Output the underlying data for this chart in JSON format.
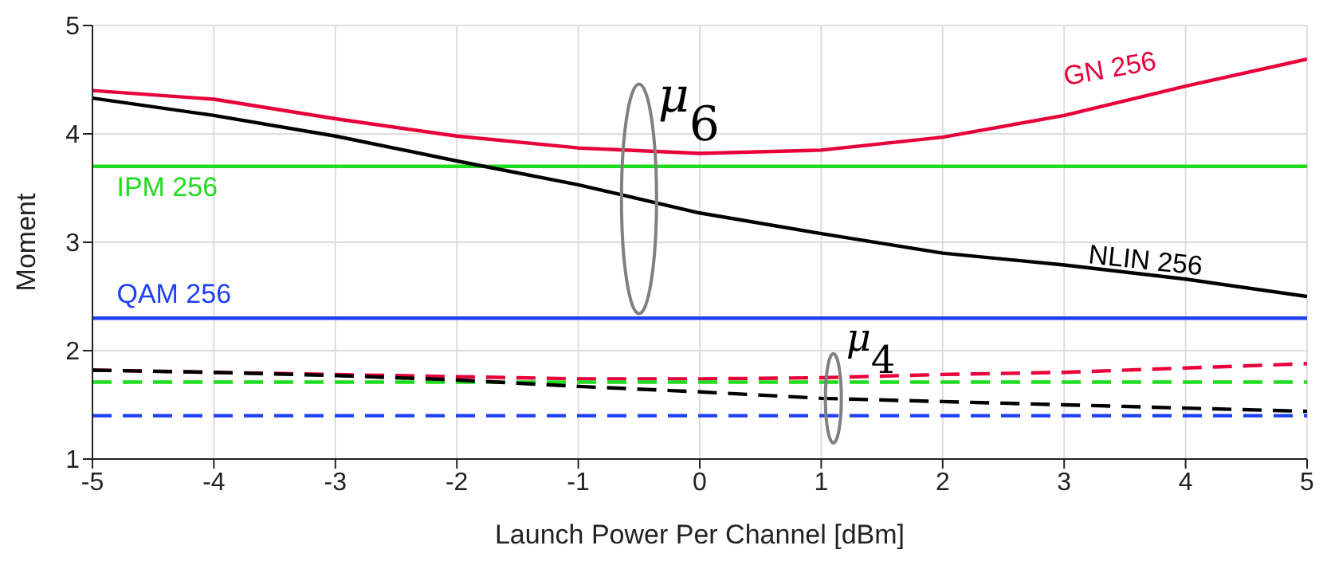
{
  "chart_data": {
    "type": "line",
    "xlabel": "Launch Power Per Channel [dBm]",
    "ylabel": "Moment",
    "x": [
      -5,
      -4,
      -3,
      -2,
      -1,
      0,
      1,
      2,
      3,
      4,
      5
    ],
    "series": [
      {
        "name": "GN 256",
        "color": "#e8003a",
        "values": [
          4.4,
          4.32,
          4.14,
          3.98,
          3.87,
          3.82,
          3.85,
          3.97,
          4.17,
          4.44,
          4.69
        ]
      },
      {
        "name": "IPM 256",
        "color": "#1edc1e",
        "values": [
          3.7,
          3.7,
          3.7,
          3.7,
          3.7,
          3.7,
          3.7,
          3.7,
          3.7,
          3.7,
          3.7
        ]
      },
      {
        "name": "QAM 256",
        "color": "#1f3ff5",
        "values": [
          2.3,
          2.3,
          2.3,
          2.3,
          2.3,
          2.3,
          2.3,
          2.3,
          2.3,
          2.3,
          2.3
        ]
      },
      {
        "name": "NLIN 256",
        "color": "#000000",
        "values": [
          4.33,
          4.17,
          3.98,
          3.75,
          3.53,
          3.27,
          3.08,
          2.9,
          2.79,
          2.66,
          2.5
        ]
      },
      {
        "color": "#e8003a",
        "line_style": "dashed",
        "values": [
          1.82,
          1.8,
          1.78,
          1.76,
          1.74,
          1.74,
          1.75,
          1.78,
          1.8,
          1.84,
          1.88
        ]
      },
      {
        "color": "#1edc1e",
        "line_style": "dashed",
        "values": [
          1.71,
          1.71,
          1.71,
          1.71,
          1.71,
          1.71,
          1.71,
          1.71,
          1.71,
          1.71,
          1.71
        ]
      },
      {
        "color": "#1f3ff5",
        "line_style": "dashed",
        "values": [
          1.4,
          1.4,
          1.4,
          1.4,
          1.4,
          1.4,
          1.4,
          1.4,
          1.4,
          1.4,
          1.4
        ]
      },
      {
        "color": "#000000",
        "line_style": "dashed",
        "values": [
          1.82,
          1.8,
          1.77,
          1.73,
          1.67,
          1.62,
          1.56,
          1.53,
          1.5,
          1.47,
          1.44
        ]
      }
    ],
    "xlim": [
      -5,
      5
    ],
    "xticks": [
      -5,
      -4,
      -3,
      -2,
      -1,
      0,
      1,
      2,
      3,
      4,
      5
    ],
    "ylim": [
      1,
      5
    ],
    "yticks": [
      1,
      2,
      3,
      4,
      5
    ],
    "grid": true,
    "marker": "none",
    "line_style": "solid",
    "annotations": [
      {
        "text": "μ$_{6}$",
        "x": -0.5,
        "y": 3.4
      },
      {
        "text": "μ$_{4}$",
        "x": 1.1,
        "y": 1.56
      }
    ]
  }
}
